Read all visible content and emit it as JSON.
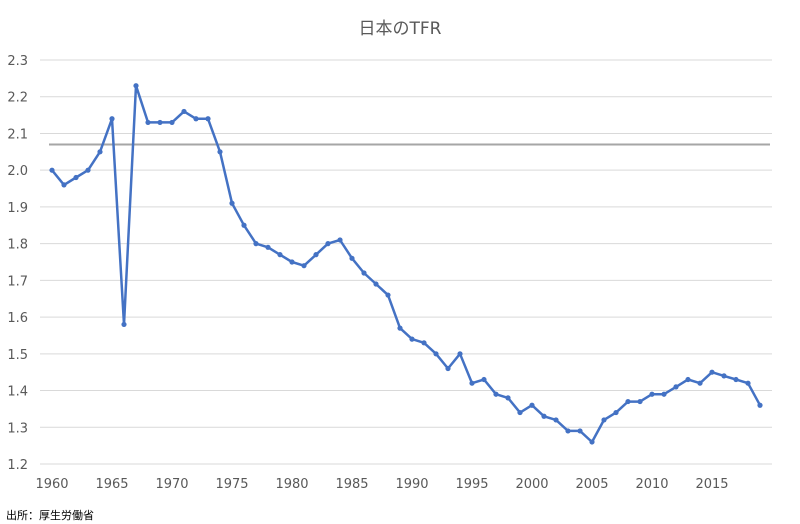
{
  "chart_data": {
    "type": "line",
    "title": "日本のTFR",
    "xlabel": "",
    "ylabel": "",
    "xlim": [
      1959,
      2020
    ],
    "ylim": [
      1.2,
      2.3
    ],
    "x_ticks": [
      "1960",
      "1965",
      "1970",
      "1975",
      "1980",
      "1985",
      "1990",
      "1995",
      "2000",
      "2005",
      "2010",
      "2015"
    ],
    "y_ticks": [
      "1.2",
      "1.3",
      "1.4",
      "1.5",
      "1.6",
      "1.7",
      "1.8",
      "1.9",
      "2.0",
      "2.1",
      "2.2",
      "2.3"
    ],
    "grid": "horizontal",
    "legend": "none",
    "series": [
      {
        "color": "#4472c4",
        "x": [
          1960,
          1961,
          1962,
          1963,
          1964,
          1965,
          1966,
          1967,
          1968,
          1969,
          1970,
          1971,
          1972,
          1973,
          1974,
          1975,
          1976,
          1977,
          1978,
          1979,
          1980,
          1981,
          1982,
          1983,
          1984,
          1985,
          1986,
          1987,
          1988,
          1989,
          1990,
          1991,
          1992,
          1993,
          1994,
          1995,
          1996,
          1997,
          1998,
          1999,
          2000,
          2001,
          2002,
          2003,
          2004,
          2005,
          2006,
          2007,
          2008,
          2009,
          2010,
          2011,
          2012,
          2013,
          2014,
          2015,
          2016,
          2017,
          2018,
          2019
        ],
        "values": [
          2.0,
          1.96,
          1.98,
          2.0,
          2.05,
          2.14,
          1.58,
          2.23,
          2.13,
          2.13,
          2.13,
          2.16,
          2.14,
          2.14,
          2.05,
          1.91,
          1.85,
          1.8,
          1.79,
          1.77,
          1.75,
          1.74,
          1.77,
          1.8,
          1.81,
          1.76,
          1.72,
          1.69,
          1.66,
          1.57,
          1.54,
          1.53,
          1.5,
          1.46,
          1.5,
          1.42,
          1.43,
          1.39,
          1.38,
          1.34,
          1.36,
          1.33,
          1.32,
          1.29,
          1.29,
          1.26,
          1.32,
          1.34,
          1.37,
          1.37,
          1.39,
          1.39,
          1.41,
          1.43,
          1.42,
          1.45,
          1.44,
          1.43,
          1.42,
          1.36
        ]
      }
    ],
    "reference_line": {
      "value": 2.07,
      "color": "#a6a6a6"
    }
  },
  "source": "出所：厚生労働省",
  "colors": {
    "grid": "#d9d9d9",
    "axis_text": "#595959",
    "title": "#595959"
  }
}
